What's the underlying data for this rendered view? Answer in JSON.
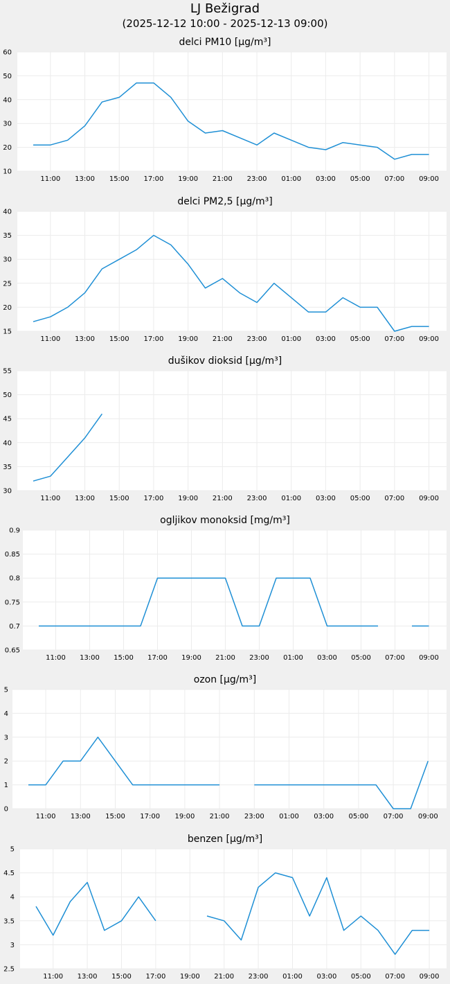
{
  "header": {
    "station": "LJ Bežigrad",
    "period": "(2025-12-12 10:00 - 2025-12-13 09:00)"
  },
  "chart_data": [
    {
      "type": "line",
      "title": "delci PM10 [µg/m³]",
      "x": [
        "10:00",
        "11:00",
        "12:00",
        "13:00",
        "14:00",
        "15:00",
        "16:00",
        "17:00",
        "18:00",
        "19:00",
        "20:00",
        "21:00",
        "22:00",
        "23:00",
        "00:00",
        "01:00",
        "02:00",
        "03:00",
        "04:00",
        "05:00",
        "06:00",
        "07:00",
        "08:00",
        "09:00"
      ],
      "xticks": [
        "11:00",
        "13:00",
        "15:00",
        "17:00",
        "19:00",
        "21:00",
        "23:00",
        "01:00",
        "03:00",
        "05:00",
        "07:00",
        "09:00"
      ],
      "yticks": [
        "10",
        "20",
        "30",
        "40",
        "50",
        "60"
      ],
      "ylim": [
        10,
        60
      ],
      "series": [
        {
          "values": [
            21,
            21,
            23,
            29,
            39,
            41,
            47,
            47,
            41,
            31,
            26,
            27,
            24,
            21,
            26,
            23,
            20,
            19,
            22,
            21,
            20,
            15,
            17,
            17
          ]
        }
      ],
      "color": "#1e8fd5"
    },
    {
      "type": "line",
      "title": "delci PM2,5 [µg/m³]",
      "x": [
        "10:00",
        "11:00",
        "12:00",
        "13:00",
        "14:00",
        "15:00",
        "16:00",
        "17:00",
        "18:00",
        "19:00",
        "20:00",
        "21:00",
        "22:00",
        "23:00",
        "00:00",
        "01:00",
        "02:00",
        "03:00",
        "04:00",
        "05:00",
        "06:00",
        "07:00",
        "08:00",
        "09:00"
      ],
      "xticks": [
        "11:00",
        "13:00",
        "15:00",
        "17:00",
        "19:00",
        "21:00",
        "23:00",
        "01:00",
        "03:00",
        "05:00",
        "07:00",
        "09:00"
      ],
      "yticks": [
        "15",
        "20",
        "25",
        "30",
        "35",
        "40"
      ],
      "ylim": [
        15,
        40
      ],
      "series": [
        {
          "values": [
            17,
            18,
            20,
            23,
            28,
            30,
            32,
            35,
            33,
            29,
            24,
            26,
            23,
            21,
            25,
            22,
            19,
            19,
            22,
            20,
            20,
            15,
            16,
            16
          ]
        }
      ],
      "color": "#1e8fd5"
    },
    {
      "type": "line",
      "title": "dušikov dioksid [µg/m³]",
      "x": [
        "10:00",
        "11:00",
        "12:00",
        "13:00",
        "14:00",
        "15:00",
        "16:00",
        "17:00",
        "18:00",
        "19:00",
        "20:00",
        "21:00",
        "22:00",
        "23:00",
        "00:00",
        "01:00",
        "02:00",
        "03:00",
        "04:00",
        "05:00",
        "06:00",
        "07:00",
        "08:00",
        "09:00"
      ],
      "xticks": [
        "11:00",
        "13:00",
        "15:00",
        "17:00",
        "19:00",
        "21:00",
        "23:00",
        "01:00",
        "03:00",
        "05:00",
        "07:00",
        "09:00"
      ],
      "yticks": [
        "30",
        "35",
        "40",
        "45",
        "50",
        "55"
      ],
      "ylim": [
        30,
        55
      ],
      "series": [
        {
          "values": [
            32,
            33,
            37,
            41,
            46,
            null,
            null,
            null,
            null,
            null,
            null,
            null,
            null,
            null,
            null,
            null,
            null,
            null,
            null,
            null,
            null,
            null,
            null,
            null
          ]
        }
      ],
      "color": "#1e8fd5"
    },
    {
      "type": "line",
      "title": "ogljikov monoksid [mg/m³]",
      "x": [
        "10:00",
        "11:00",
        "12:00",
        "13:00",
        "14:00",
        "15:00",
        "16:00",
        "17:00",
        "18:00",
        "19:00",
        "20:00",
        "21:00",
        "22:00",
        "23:00",
        "00:00",
        "01:00",
        "02:00",
        "03:00",
        "04:00",
        "05:00",
        "06:00",
        "07:00",
        "08:00",
        "09:00"
      ],
      "xticks": [
        "11:00",
        "13:00",
        "15:00",
        "17:00",
        "19:00",
        "21:00",
        "23:00",
        "01:00",
        "03:00",
        "05:00",
        "07:00",
        "09:00"
      ],
      "yticks": [
        "0.65",
        "0.7",
        "0.75",
        "0.8",
        "0.85",
        "0.9"
      ],
      "ylim": [
        0.65,
        0.9
      ],
      "series": [
        {
          "values": [
            0.7,
            0.7,
            0.7,
            0.7,
            0.7,
            0.7,
            0.7,
            0.8,
            0.8,
            0.8,
            0.8,
            0.8,
            0.7,
            0.7,
            0.8,
            0.8,
            0.8,
            0.7,
            0.7,
            0.7,
            0.7,
            null,
            0.7,
            0.7
          ]
        }
      ],
      "color": "#1e8fd5"
    },
    {
      "type": "line",
      "title": "ozon [µg/m³]",
      "x": [
        "10:00",
        "11:00",
        "12:00",
        "13:00",
        "14:00",
        "15:00",
        "16:00",
        "17:00",
        "18:00",
        "19:00",
        "20:00",
        "21:00",
        "22:00",
        "23:00",
        "00:00",
        "01:00",
        "02:00",
        "03:00",
        "04:00",
        "05:00",
        "06:00",
        "07:00",
        "08:00",
        "09:00"
      ],
      "xticks": [
        "11:00",
        "13:00",
        "15:00",
        "17:00",
        "19:00",
        "21:00",
        "23:00",
        "01:00",
        "03:00",
        "05:00",
        "07:00",
        "09:00"
      ],
      "yticks": [
        "0",
        "1",
        "2",
        "3",
        "4",
        "5"
      ],
      "ylim": [
        0,
        5
      ],
      "series": [
        {
          "values": [
            1,
            1,
            2,
            2,
            3,
            2,
            1,
            1,
            1,
            1,
            1,
            1,
            null,
            1,
            1,
            1,
            1,
            1,
            1,
            1,
            1,
            0,
            0,
            2
          ]
        }
      ],
      "color": "#1e8fd5"
    },
    {
      "type": "line",
      "title": "benzen [µg/m³]",
      "x": [
        "10:00",
        "11:00",
        "12:00",
        "13:00",
        "14:00",
        "15:00",
        "16:00",
        "17:00",
        "18:00",
        "19:00",
        "20:00",
        "21:00",
        "22:00",
        "23:00",
        "00:00",
        "01:00",
        "02:00",
        "03:00",
        "04:00",
        "05:00",
        "06:00",
        "07:00",
        "08:00",
        "09:00"
      ],
      "xticks": [
        "11:00",
        "13:00",
        "15:00",
        "17:00",
        "19:00",
        "21:00",
        "23:00",
        "01:00",
        "03:00",
        "05:00",
        "07:00",
        "09:00"
      ],
      "yticks": [
        "2.5",
        "3",
        "3.5",
        "4",
        "4.5",
        "5"
      ],
      "ylim": [
        2.5,
        5
      ],
      "series": [
        {
          "values": [
            3.8,
            3.2,
            3.9,
            4.3,
            3.3,
            3.5,
            4.0,
            3.5,
            null,
            null,
            3.6,
            3.5,
            3.1,
            4.2,
            4.5,
            4.4,
            3.6,
            4.4,
            3.3,
            3.6,
            3.3,
            2.8,
            3.3,
            3.3
          ]
        }
      ],
      "color": "#1e8fd5"
    }
  ]
}
